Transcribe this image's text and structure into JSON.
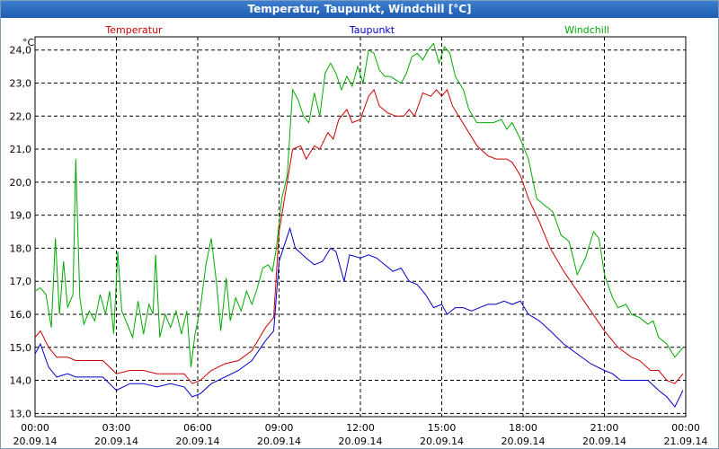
{
  "window": {
    "title": "Temperatur, Taupunkt, Windchill [°C]"
  },
  "chart_data": {
    "type": "line",
    "title": "Temperatur, Taupunkt, Windchill [°C]",
    "ylabel": "°C",
    "ylim": [
      12.9,
      24.4
    ],
    "xlim": [
      0,
      24
    ],
    "grid": true,
    "legend_placement": "top",
    "yticks": [
      "13,0",
      "14,0",
      "15,0",
      "16,0",
      "17,0",
      "18,0",
      "19,0",
      "20,0",
      "21,0",
      "22,0",
      "23,0",
      "24,0"
    ],
    "ytick_values": [
      13,
      14,
      15,
      16,
      17,
      18,
      19,
      20,
      21,
      22,
      23,
      24
    ],
    "xticks": [
      {
        "time": "00:00",
        "date": "20.09.14",
        "h": 0
      },
      {
        "time": "03:00",
        "date": "20.09.14",
        "h": 3
      },
      {
        "time": "06:00",
        "date": "20.09.14",
        "h": 6
      },
      {
        "time": "09:00",
        "date": "20.09.14",
        "h": 9
      },
      {
        "time": "12:00",
        "date": "20.09.14",
        "h": 12
      },
      {
        "time": "15:00",
        "date": "20.09.14",
        "h": 15
      },
      {
        "time": "18:00",
        "date": "20.09.14",
        "h": 18
      },
      {
        "time": "21:00",
        "date": "20.09.14",
        "h": 21
      },
      {
        "time": "00:00",
        "date": "21.09.14",
        "h": 24
      }
    ],
    "series": [
      {
        "name": "Temperatur",
        "color": "#cc0000",
        "points": [
          [
            0.0,
            15.3
          ],
          [
            0.2,
            15.5
          ],
          [
            0.5,
            15.0
          ],
          [
            0.8,
            14.7
          ],
          [
            1.2,
            14.7
          ],
          [
            1.5,
            14.6
          ],
          [
            2.0,
            14.6
          ],
          [
            2.5,
            14.6
          ],
          [
            3.0,
            14.2
          ],
          [
            3.5,
            14.3
          ],
          [
            4.0,
            14.3
          ],
          [
            4.5,
            14.2
          ],
          [
            5.0,
            14.2
          ],
          [
            5.5,
            14.2
          ],
          [
            5.8,
            13.9
          ],
          [
            6.1,
            14.0
          ],
          [
            6.5,
            14.3
          ],
          [
            7.0,
            14.5
          ],
          [
            7.5,
            14.6
          ],
          [
            8.0,
            14.9
          ],
          [
            8.5,
            15.6
          ],
          [
            8.8,
            15.9
          ],
          [
            9.0,
            18.5
          ],
          [
            9.3,
            20.0
          ],
          [
            9.5,
            21.0
          ],
          [
            9.8,
            21.1
          ],
          [
            10.0,
            20.7
          ],
          [
            10.3,
            21.1
          ],
          [
            10.5,
            21.0
          ],
          [
            10.8,
            21.5
          ],
          [
            11.0,
            21.3
          ],
          [
            11.2,
            21.9
          ],
          [
            11.5,
            22.2
          ],
          [
            11.7,
            21.8
          ],
          [
            12.0,
            21.9
          ],
          [
            12.3,
            22.6
          ],
          [
            12.5,
            22.8
          ],
          [
            12.7,
            22.3
          ],
          [
            13.0,
            22.1
          ],
          [
            13.3,
            22.0
          ],
          [
            13.6,
            22.0
          ],
          [
            13.8,
            22.2
          ],
          [
            14.0,
            22.0
          ],
          [
            14.3,
            22.7
          ],
          [
            14.6,
            22.6
          ],
          [
            14.8,
            22.8
          ],
          [
            15.0,
            22.6
          ],
          [
            15.2,
            22.8
          ],
          [
            15.4,
            22.3
          ],
          [
            15.7,
            21.9
          ],
          [
            16.0,
            21.5
          ],
          [
            16.3,
            21.1
          ],
          [
            16.7,
            20.8
          ],
          [
            17.0,
            20.7
          ],
          [
            17.4,
            20.7
          ],
          [
            17.6,
            20.6
          ],
          [
            17.9,
            20.2
          ],
          [
            18.2,
            19.5
          ],
          [
            18.6,
            18.8
          ],
          [
            19.0,
            18.0
          ],
          [
            19.5,
            17.3
          ],
          [
            20.0,
            16.7
          ],
          [
            20.5,
            16.1
          ],
          [
            21.0,
            15.5
          ],
          [
            21.5,
            15.0
          ],
          [
            22.0,
            14.7
          ],
          [
            22.3,
            14.6
          ],
          [
            22.7,
            14.3
          ],
          [
            23.0,
            14.3
          ],
          [
            23.3,
            14.0
          ],
          [
            23.6,
            13.9
          ],
          [
            23.9,
            14.2
          ]
        ]
      },
      {
        "name": "Taupunkt",
        "color": "#0000cc",
        "points": [
          [
            0.0,
            14.8
          ],
          [
            0.2,
            15.1
          ],
          [
            0.5,
            14.4
          ],
          [
            0.8,
            14.1
          ],
          [
            1.2,
            14.2
          ],
          [
            1.5,
            14.1
          ],
          [
            2.0,
            14.1
          ],
          [
            2.5,
            14.1
          ],
          [
            3.0,
            13.7
          ],
          [
            3.5,
            13.9
          ],
          [
            4.0,
            13.9
          ],
          [
            4.5,
            13.8
          ],
          [
            5.0,
            13.9
          ],
          [
            5.5,
            13.8
          ],
          [
            5.8,
            13.5
          ],
          [
            6.1,
            13.6
          ],
          [
            6.5,
            13.9
          ],
          [
            7.0,
            14.1
          ],
          [
            7.5,
            14.3
          ],
          [
            8.0,
            14.6
          ],
          [
            8.5,
            15.2
          ],
          [
            8.8,
            15.5
          ],
          [
            9.0,
            17.6
          ],
          [
            9.2,
            18.1
          ],
          [
            9.4,
            18.6
          ],
          [
            9.6,
            18.0
          ],
          [
            10.0,
            17.7
          ],
          [
            10.3,
            17.5
          ],
          [
            10.6,
            17.6
          ],
          [
            10.9,
            18.0
          ],
          [
            11.1,
            17.9
          ],
          [
            11.4,
            17.0
          ],
          [
            11.6,
            17.8
          ],
          [
            12.0,
            17.7
          ],
          [
            12.3,
            17.8
          ],
          [
            12.6,
            17.7
          ],
          [
            12.9,
            17.5
          ],
          [
            13.2,
            17.3
          ],
          [
            13.5,
            17.4
          ],
          [
            13.8,
            17.0
          ],
          [
            14.1,
            16.9
          ],
          [
            14.4,
            16.6
          ],
          [
            14.7,
            16.2
          ],
          [
            15.0,
            16.3
          ],
          [
            15.2,
            16.0
          ],
          [
            15.5,
            16.2
          ],
          [
            15.8,
            16.2
          ],
          [
            16.1,
            16.1
          ],
          [
            16.4,
            16.2
          ],
          [
            16.7,
            16.3
          ],
          [
            17.0,
            16.3
          ],
          [
            17.3,
            16.4
          ],
          [
            17.6,
            16.3
          ],
          [
            17.9,
            16.4
          ],
          [
            18.2,
            16.0
          ],
          [
            18.6,
            15.8
          ],
          [
            19.0,
            15.5
          ],
          [
            19.5,
            15.1
          ],
          [
            20.0,
            14.8
          ],
          [
            20.5,
            14.5
          ],
          [
            21.0,
            14.3
          ],
          [
            21.3,
            14.2
          ],
          [
            21.6,
            14.0
          ],
          [
            22.0,
            14.0
          ],
          [
            22.3,
            14.0
          ],
          [
            22.6,
            14.0
          ],
          [
            23.0,
            13.7
          ],
          [
            23.3,
            13.5
          ],
          [
            23.6,
            13.2
          ],
          [
            23.9,
            13.7
          ]
        ]
      },
      {
        "name": "Windchill",
        "color": "#00aa00",
        "points": [
          [
            0.0,
            16.7
          ],
          [
            0.2,
            16.8
          ],
          [
            0.4,
            16.6
          ],
          [
            0.6,
            15.6
          ],
          [
            0.75,
            18.3
          ],
          [
            0.9,
            16.0
          ],
          [
            1.05,
            17.6
          ],
          [
            1.2,
            16.2
          ],
          [
            1.4,
            16.6
          ],
          [
            1.5,
            20.7
          ],
          [
            1.65,
            16.5
          ],
          [
            1.8,
            15.7
          ],
          [
            2.0,
            16.1
          ],
          [
            2.2,
            15.8
          ],
          [
            2.4,
            16.6
          ],
          [
            2.6,
            16.0
          ],
          [
            2.75,
            16.7
          ],
          [
            2.9,
            15.4
          ],
          [
            3.05,
            17.9
          ],
          [
            3.2,
            16.1
          ],
          [
            3.4,
            15.7
          ],
          [
            3.6,
            15.3
          ],
          [
            3.8,
            16.4
          ],
          [
            4.0,
            15.4
          ],
          [
            4.2,
            16.3
          ],
          [
            4.35,
            16.0
          ],
          [
            4.45,
            17.8
          ],
          [
            4.6,
            15.3
          ],
          [
            4.8,
            16.0
          ],
          [
            5.0,
            15.6
          ],
          [
            5.2,
            16.1
          ],
          [
            5.4,
            15.4
          ],
          [
            5.6,
            16.1
          ],
          [
            5.75,
            14.4
          ],
          [
            5.9,
            15.4
          ],
          [
            6.1,
            16.2
          ],
          [
            6.3,
            17.5
          ],
          [
            6.5,
            18.3
          ],
          [
            6.7,
            16.9
          ],
          [
            6.85,
            15.5
          ],
          [
            7.05,
            17.1
          ],
          [
            7.2,
            15.8
          ],
          [
            7.4,
            16.5
          ],
          [
            7.6,
            16.1
          ],
          [
            7.8,
            16.7
          ],
          [
            8.0,
            16.3
          ],
          [
            8.2,
            16.8
          ],
          [
            8.4,
            17.4
          ],
          [
            8.6,
            17.5
          ],
          [
            8.75,
            17.3
          ],
          [
            8.9,
            18.0
          ],
          [
            9.1,
            19.5
          ],
          [
            9.3,
            20.2
          ],
          [
            9.5,
            22.8
          ],
          [
            9.7,
            22.5
          ],
          [
            9.9,
            22.0
          ],
          [
            10.1,
            21.8
          ],
          [
            10.3,
            22.7
          ],
          [
            10.5,
            22.0
          ],
          [
            10.7,
            23.3
          ],
          [
            10.9,
            23.6
          ],
          [
            11.1,
            23.3
          ],
          [
            11.3,
            22.8
          ],
          [
            11.5,
            23.2
          ],
          [
            11.7,
            22.9
          ],
          [
            11.9,
            23.5
          ],
          [
            12.1,
            23.0
          ],
          [
            12.3,
            24.0
          ],
          [
            12.5,
            23.9
          ],
          [
            12.7,
            23.4
          ],
          [
            12.9,
            23.2
          ],
          [
            13.1,
            23.2
          ],
          [
            13.3,
            23.1
          ],
          [
            13.5,
            23.0
          ],
          [
            13.7,
            23.3
          ],
          [
            13.9,
            23.8
          ],
          [
            14.1,
            23.9
          ],
          [
            14.3,
            23.7
          ],
          [
            14.5,
            24.0
          ],
          [
            14.7,
            24.2
          ],
          [
            14.9,
            23.6
          ],
          [
            15.1,
            24.1
          ],
          [
            15.3,
            23.9
          ],
          [
            15.5,
            23.2
          ],
          [
            15.8,
            22.8
          ],
          [
            16.0,
            22.2
          ],
          [
            16.3,
            21.8
          ],
          [
            16.6,
            21.8
          ],
          [
            16.9,
            21.8
          ],
          [
            17.2,
            21.9
          ],
          [
            17.4,
            21.6
          ],
          [
            17.6,
            21.8
          ],
          [
            17.9,
            21.3
          ],
          [
            18.2,
            20.7
          ],
          [
            18.5,
            19.5
          ],
          [
            18.8,
            19.3
          ],
          [
            19.1,
            19.1
          ],
          [
            19.4,
            18.4
          ],
          [
            19.7,
            18.2
          ],
          [
            20.0,
            17.2
          ],
          [
            20.3,
            17.7
          ],
          [
            20.6,
            18.5
          ],
          [
            20.8,
            18.3
          ],
          [
            21.0,
            17.2
          ],
          [
            21.3,
            16.5
          ],
          [
            21.5,
            16.2
          ],
          [
            21.8,
            16.3
          ],
          [
            22.0,
            16.0
          ],
          [
            22.3,
            15.9
          ],
          [
            22.6,
            15.7
          ],
          [
            22.8,
            15.8
          ],
          [
            23.0,
            15.3
          ],
          [
            23.3,
            15.1
          ],
          [
            23.6,
            14.7
          ],
          [
            23.9,
            15.0
          ]
        ]
      }
    ]
  }
}
